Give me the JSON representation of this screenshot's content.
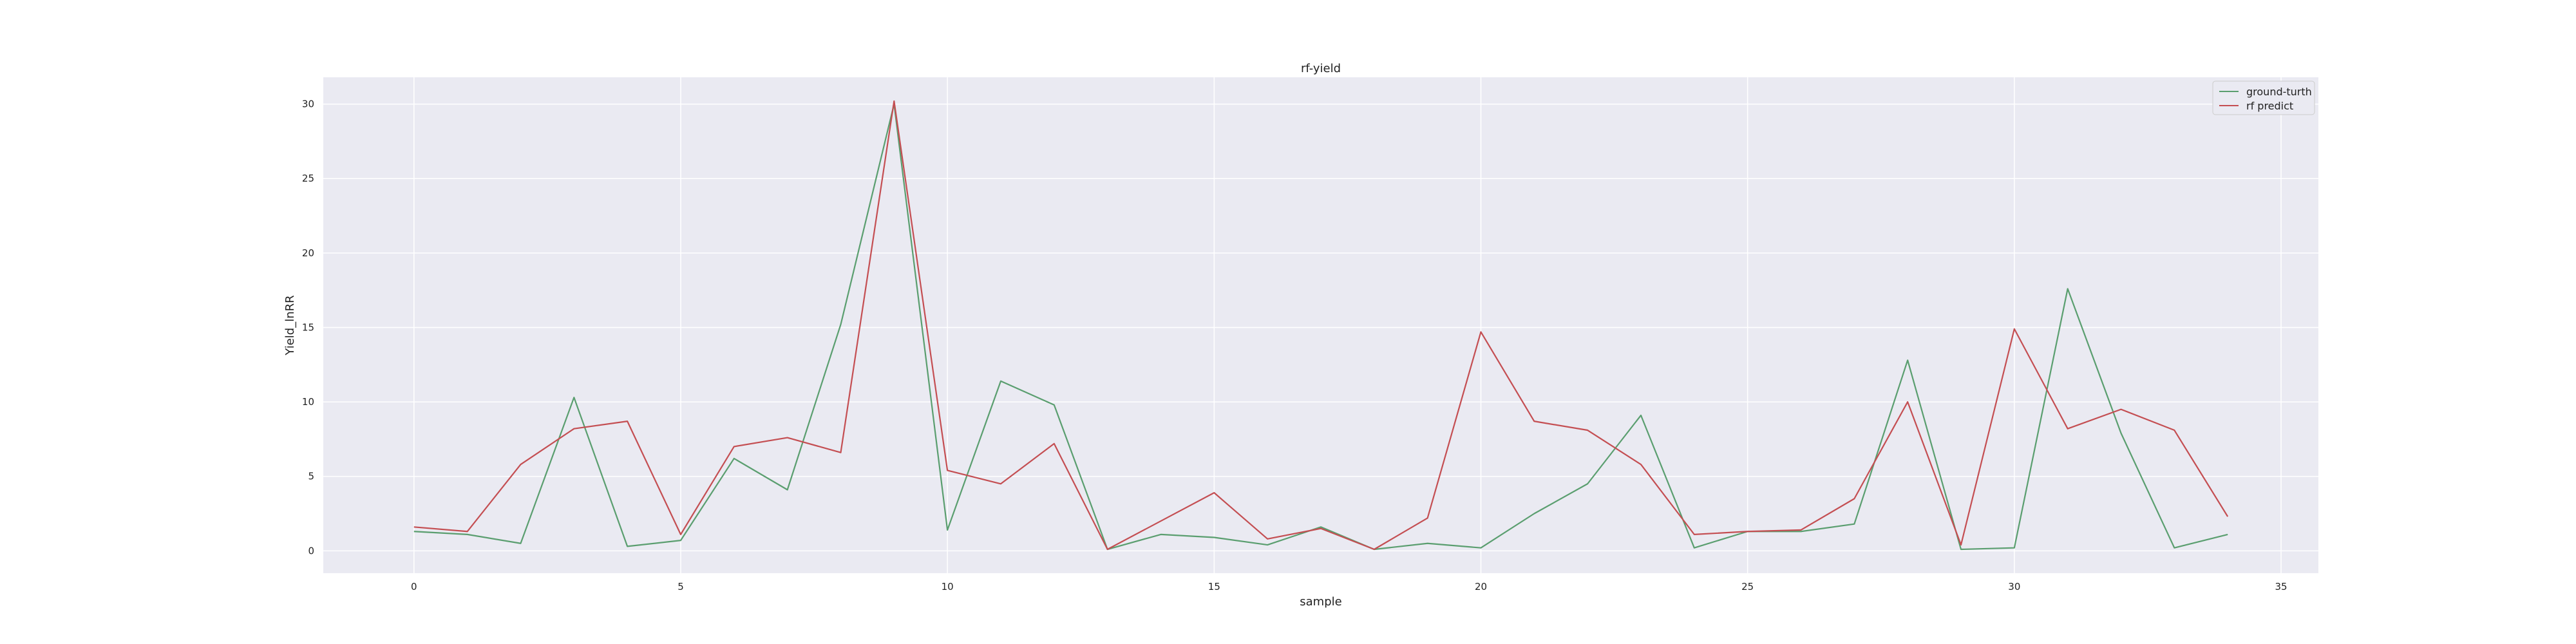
{
  "chart_data": {
    "type": "line",
    "title": "rf-yield",
    "xlabel": "sample",
    "ylabel": "Yield_lnRR",
    "xlim": [
      -1.7,
      35.7
    ],
    "ylim": [
      -1.5,
      31.8
    ],
    "xticks": [
      0,
      5,
      10,
      15,
      20,
      25,
      30,
      35
    ],
    "yticks": [
      0,
      5,
      10,
      15,
      20,
      25,
      30
    ],
    "grid": true,
    "legend_position": "top-right",
    "x": [
      0,
      1,
      2,
      3,
      4,
      5,
      6,
      7,
      8,
      9,
      10,
      11,
      12,
      13,
      14,
      15,
      16,
      17,
      18,
      19,
      20,
      21,
      22,
      23,
      24,
      25,
      26,
      27,
      28,
      29,
      30,
      31,
      32,
      33,
      34
    ],
    "series": [
      {
        "name": "ground-turth",
        "color": "#5a9e6f",
        "values": [
          1.3,
          1.1,
          0.5,
          10.3,
          0.3,
          0.7,
          6.2,
          4.1,
          15.2,
          30.0,
          1.4,
          11.4,
          9.8,
          0.1,
          1.1,
          0.9,
          0.4,
          1.6,
          0.1,
          0.5,
          0.2,
          2.5,
          4.5,
          9.1,
          0.2,
          1.3,
          1.3,
          1.8,
          12.8,
          0.1,
          0.2,
          17.6,
          7.9,
          0.2,
          1.1
        ]
      },
      {
        "name": "rf predict",
        "color": "#c44e52",
        "values": [
          1.6,
          1.3,
          5.8,
          8.2,
          8.7,
          1.1,
          7.0,
          7.6,
          6.6,
          30.2,
          5.4,
          4.5,
          7.2,
          0.1,
          2.0,
          3.9,
          0.8,
          1.5,
          0.1,
          2.2,
          14.7,
          8.7,
          8.1,
          5.8,
          1.1,
          1.3,
          1.4,
          3.5,
          10.0,
          0.4,
          14.9,
          8.2,
          9.5,
          8.1,
          2.3
        ]
      }
    ]
  }
}
